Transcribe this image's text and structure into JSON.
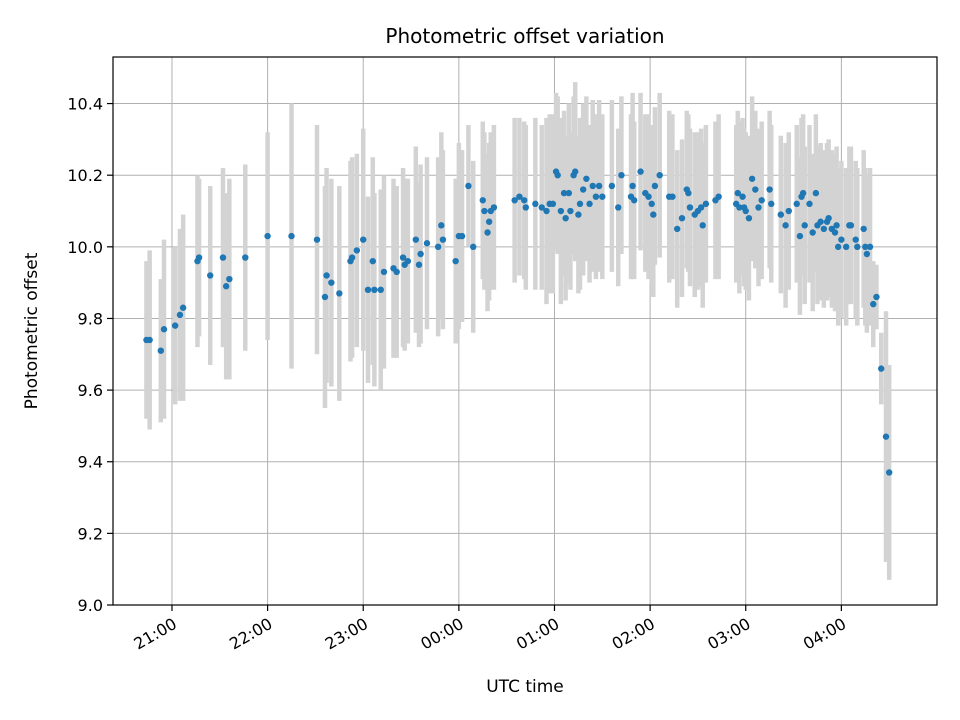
{
  "chart_data": {
    "type": "scatter",
    "title": "Photometric offset variation",
    "xlabel": "UTC time",
    "ylabel": "Photometric offset",
    "xlim": [
      "20:23",
      "05:00"
    ],
    "ylim": [
      9.0,
      10.53
    ],
    "grid": true,
    "x_ticks": [
      "21:00",
      "22:00",
      "23:00",
      "00:00",
      "01:00",
      "02:00",
      "03:00",
      "04:00"
    ],
    "y_ticks": [
      "9.0",
      "9.2",
      "9.4",
      "9.6",
      "9.8",
      "10.0",
      "10.2",
      "10.4"
    ],
    "colors": {
      "points": "#1f77b4",
      "errorbars": "#d3d3d3",
      "grid": "#b0b0b0"
    },
    "points": [
      {
        "x": "20:44",
        "y": 9.74,
        "err": 0.22
      },
      {
        "x": "20:46",
        "y": 9.74,
        "err": 0.25
      },
      {
        "x": "20:53",
        "y": 9.71,
        "err": 0.2
      },
      {
        "x": "20:55",
        "y": 9.77,
        "err": 0.25
      },
      {
        "x": "21:02",
        "y": 9.78,
        "err": 0.22
      },
      {
        "x": "21:05",
        "y": 9.81,
        "err": 0.24
      },
      {
        "x": "21:07",
        "y": 9.83,
        "err": 0.26
      },
      {
        "x": "21:16",
        "y": 9.96,
        "err": 0.24
      },
      {
        "x": "21:17",
        "y": 9.97,
        "err": 0.22
      },
      {
        "x": "21:24",
        "y": 9.92,
        "err": 0.25
      },
      {
        "x": "21:32",
        "y": 9.97,
        "err": 0.25
      },
      {
        "x": "21:34",
        "y": 9.89,
        "err": 0.26
      },
      {
        "x": "21:36",
        "y": 9.91,
        "err": 0.28
      },
      {
        "x": "21:46",
        "y": 9.97,
        "err": 0.26
      },
      {
        "x": "22:00",
        "y": 10.03,
        "err": 0.29
      },
      {
        "x": "22:15",
        "y": 10.03,
        "err": 0.37
      },
      {
        "x": "22:31",
        "y": 10.02,
        "err": 0.32
      },
      {
        "x": "22:36",
        "y": 9.86,
        "err": 0.31
      },
      {
        "x": "22:37",
        "y": 9.92,
        "err": 0.3
      },
      {
        "x": "22:40",
        "y": 9.9,
        "err": 0.29
      },
      {
        "x": "22:45",
        "y": 9.87,
        "err": 0.3
      },
      {
        "x": "22:52",
        "y": 9.96,
        "err": 0.28
      },
      {
        "x": "22:53",
        "y": 9.97,
        "err": 0.28
      },
      {
        "x": "22:56",
        "y": 9.99,
        "err": 0.27
      },
      {
        "x": "23:00",
        "y": 10.02,
        "err": 0.31
      },
      {
        "x": "23:03",
        "y": 9.88,
        "err": 0.26
      },
      {
        "x": "23:06",
        "y": 9.96,
        "err": 0.29
      },
      {
        "x": "23:07",
        "y": 9.88,
        "err": 0.27
      },
      {
        "x": "23:11",
        "y": 9.88,
        "err": 0.28
      },
      {
        "x": "23:13",
        "y": 9.93,
        "err": 0.27
      },
      {
        "x": "23:19",
        "y": 9.94,
        "err": 0.25
      },
      {
        "x": "23:21",
        "y": 9.93,
        "err": 0.24
      },
      {
        "x": "23:25",
        "y": 9.97,
        "err": 0.25
      },
      {
        "x": "23:26",
        "y": 9.95,
        "err": 0.24
      },
      {
        "x": "23:28",
        "y": 9.96,
        "err": 0.23
      },
      {
        "x": "23:33",
        "y": 10.02,
        "err": 0.26
      },
      {
        "x": "23:35",
        "y": 9.95,
        "err": 0.23
      },
      {
        "x": "23:36",
        "y": 9.98,
        "err": 0.25
      },
      {
        "x": "23:40",
        "y": 10.01,
        "err": 0.24
      },
      {
        "x": "23:47",
        "y": 10.0,
        "err": 0.25
      },
      {
        "x": "23:49",
        "y": 10.06,
        "err": 0.26
      },
      {
        "x": "23:50",
        "y": 10.02,
        "err": 0.25
      },
      {
        "x": "23:58",
        "y": 9.96,
        "err": 0.23
      },
      {
        "x": "00:00",
        "y": 10.03,
        "err": 0.26
      },
      {
        "x": "00:02",
        "y": 10.03,
        "err": 0.24
      },
      {
        "x": "00:06",
        "y": 10.17,
        "err": 0.17
      },
      {
        "x": "00:09",
        "y": 10.0,
        "err": 0.24
      },
      {
        "x": "00:15",
        "y": 10.13,
        "err": 0.22
      },
      {
        "x": "00:16",
        "y": 10.1,
        "err": 0.22
      },
      {
        "x": "00:18",
        "y": 10.04,
        "err": 0.22
      },
      {
        "x": "00:19",
        "y": 10.07,
        "err": 0.22
      },
      {
        "x": "00:20",
        "y": 10.1,
        "err": 0.22
      },
      {
        "x": "00:22",
        "y": 10.11,
        "err": 0.23
      },
      {
        "x": "00:35",
        "y": 10.13,
        "err": 0.23
      },
      {
        "x": "00:38",
        "y": 10.14,
        "err": 0.22
      },
      {
        "x": "00:41",
        "y": 10.13,
        "err": 0.22
      },
      {
        "x": "00:42",
        "y": 10.11,
        "err": 0.23
      },
      {
        "x": "00:48",
        "y": 10.12,
        "err": 0.24
      },
      {
        "x": "00:52",
        "y": 10.11,
        "err": 0.23
      },
      {
        "x": "00:55",
        "y": 10.1,
        "err": 0.26
      },
      {
        "x": "00:57",
        "y": 10.12,
        "err": 0.25
      },
      {
        "x": "00:59",
        "y": 10.12,
        "err": 0.25
      },
      {
        "x": "01:01",
        "y": 10.21,
        "err": 0.22
      },
      {
        "x": "01:02",
        "y": 10.2,
        "err": 0.22
      },
      {
        "x": "01:04",
        "y": 10.1,
        "err": 0.26
      },
      {
        "x": "01:06",
        "y": 10.15,
        "err": 0.23
      },
      {
        "x": "01:07",
        "y": 10.08,
        "err": 0.23
      },
      {
        "x": "01:09",
        "y": 10.15,
        "err": 0.25
      },
      {
        "x": "01:10",
        "y": 10.1,
        "err": 0.22
      },
      {
        "x": "01:12",
        "y": 10.2,
        "err": 0.22
      },
      {
        "x": "01:13",
        "y": 10.21,
        "err": 0.25
      },
      {
        "x": "01:15",
        "y": 10.09,
        "err": 0.22
      },
      {
        "x": "01:16",
        "y": 10.12,
        "err": 0.24
      },
      {
        "x": "01:18",
        "y": 10.16,
        "err": 0.24
      },
      {
        "x": "01:20",
        "y": 10.19,
        "err": 0.23
      },
      {
        "x": "01:22",
        "y": 10.12,
        "err": 0.22
      },
      {
        "x": "01:24",
        "y": 10.17,
        "err": 0.24
      },
      {
        "x": "01:26",
        "y": 10.14,
        "err": 0.23
      },
      {
        "x": "01:28",
        "y": 10.17,
        "err": 0.24
      },
      {
        "x": "01:30",
        "y": 10.14,
        "err": 0.23
      },
      {
        "x": "01:36",
        "y": 10.17,
        "err": 0.24
      },
      {
        "x": "01:40",
        "y": 10.11,
        "err": 0.22
      },
      {
        "x": "01:42",
        "y": 10.2,
        "err": 0.22
      },
      {
        "x": "01:48",
        "y": 10.14,
        "err": 0.23
      },
      {
        "x": "01:49",
        "y": 10.17,
        "err": 0.26
      },
      {
        "x": "01:50",
        "y": 10.13,
        "err": 0.22
      },
      {
        "x": "01:54",
        "y": 10.21,
        "err": 0.22
      },
      {
        "x": "01:57",
        "y": 10.15,
        "err": 0.22
      },
      {
        "x": "01:59",
        "y": 10.14,
        "err": 0.23
      },
      {
        "x": "02:01",
        "y": 10.12,
        "err": 0.22
      },
      {
        "x": "02:02",
        "y": 10.09,
        "err": 0.23
      },
      {
        "x": "02:03",
        "y": 10.17,
        "err": 0.22
      },
      {
        "x": "02:06",
        "y": 10.2,
        "err": 0.23
      },
      {
        "x": "02:12",
        "y": 10.14,
        "err": 0.24
      },
      {
        "x": "02:14",
        "y": 10.14,
        "err": 0.23
      },
      {
        "x": "02:17",
        "y": 10.05,
        "err": 0.22
      },
      {
        "x": "02:20",
        "y": 10.08,
        "err": 0.22
      },
      {
        "x": "02:23",
        "y": 10.16,
        "err": 0.22
      },
      {
        "x": "02:24",
        "y": 10.15,
        "err": 0.22
      },
      {
        "x": "02:25",
        "y": 10.11,
        "err": 0.22
      },
      {
        "x": "02:28",
        "y": 10.09,
        "err": 0.23
      },
      {
        "x": "02:30",
        "y": 10.1,
        "err": 0.22
      },
      {
        "x": "02:32",
        "y": 10.11,
        "err": 0.22
      },
      {
        "x": "02:33",
        "y": 10.06,
        "err": 0.23
      },
      {
        "x": "02:35",
        "y": 10.12,
        "err": 0.22
      },
      {
        "x": "02:41",
        "y": 10.13,
        "err": 0.22
      },
      {
        "x": "02:43",
        "y": 10.14,
        "err": 0.23
      },
      {
        "x": "02:54",
        "y": 10.12,
        "err": 0.22
      },
      {
        "x": "02:55",
        "y": 10.15,
        "err": 0.23
      },
      {
        "x": "02:56",
        "y": 10.11,
        "err": 0.24
      },
      {
        "x": "02:58",
        "y": 10.14,
        "err": 0.22
      },
      {
        "x": "02:59",
        "y": 10.11,
        "err": 0.22
      },
      {
        "x": "03:00",
        "y": 10.1,
        "err": 0.22
      },
      {
        "x": "03:02",
        "y": 10.08,
        "err": 0.23
      },
      {
        "x": "03:04",
        "y": 10.19,
        "err": 0.23
      },
      {
        "x": "03:06",
        "y": 10.16,
        "err": 0.22
      },
      {
        "x": "03:08",
        "y": 10.11,
        "err": 0.22
      },
      {
        "x": "03:10",
        "y": 10.13,
        "err": 0.22
      },
      {
        "x": "03:15",
        "y": 10.16,
        "err": 0.22
      },
      {
        "x": "03:16",
        "y": 10.12,
        "err": 0.22
      },
      {
        "x": "03:22",
        "y": 10.09,
        "err": 0.22
      },
      {
        "x": "03:25",
        "y": 10.06,
        "err": 0.23
      },
      {
        "x": "03:27",
        "y": 10.1,
        "err": 0.22
      },
      {
        "x": "03:32",
        "y": 10.12,
        "err": 0.22
      },
      {
        "x": "03:34",
        "y": 10.03,
        "err": 0.22
      },
      {
        "x": "03:35",
        "y": 10.14,
        "err": 0.22
      },
      {
        "x": "03:36",
        "y": 10.15,
        "err": 0.22
      },
      {
        "x": "03:37",
        "y": 10.06,
        "err": 0.22
      },
      {
        "x": "03:40",
        "y": 10.12,
        "err": 0.22
      },
      {
        "x": "03:42",
        "y": 10.04,
        "err": 0.22
      },
      {
        "x": "03:44",
        "y": 10.15,
        "err": 0.22
      },
      {
        "x": "03:45",
        "y": 10.06,
        "err": 0.22
      },
      {
        "x": "03:47",
        "y": 10.07,
        "err": 0.22
      },
      {
        "x": "03:49",
        "y": 10.05,
        "err": 0.22
      },
      {
        "x": "03:51",
        "y": 10.07,
        "err": 0.22
      },
      {
        "x": "03:52",
        "y": 10.08,
        "err": 0.22
      },
      {
        "x": "03:54",
        "y": 10.05,
        "err": 0.22
      },
      {
        "x": "03:56",
        "y": 10.04,
        "err": 0.22
      },
      {
        "x": "03:57",
        "y": 10.06,
        "err": 0.22
      },
      {
        "x": "03:58",
        "y": 10.0,
        "err": 0.22
      },
      {
        "x": "04:00",
        "y": 10.02,
        "err": 0.22
      },
      {
        "x": "04:03",
        "y": 10.0,
        "err": 0.22
      },
      {
        "x": "04:05",
        "y": 10.06,
        "err": 0.22
      },
      {
        "x": "04:06",
        "y": 10.06,
        "err": 0.22
      },
      {
        "x": "04:09",
        "y": 10.02,
        "err": 0.22
      },
      {
        "x": "04:10",
        "y": 10.0,
        "err": 0.22
      },
      {
        "x": "04:14",
        "y": 10.05,
        "err": 0.22
      },
      {
        "x": "04:15",
        "y": 10.0,
        "err": 0.22
      },
      {
        "x": "04:16",
        "y": 9.98,
        "err": 0.22
      },
      {
        "x": "04:18",
        "y": 10.0,
        "err": 0.22
      },
      {
        "x": "04:20",
        "y": 9.84,
        "err": 0.12
      },
      {
        "x": "04:22",
        "y": 9.86,
        "err": 0.09
      },
      {
        "x": "04:25",
        "y": 9.66,
        "err": 0.1
      },
      {
        "x": "04:28",
        "y": 9.47,
        "err": 0.35
      },
      {
        "x": "04:30",
        "y": 9.37,
        "err": 0.3
      }
    ]
  }
}
